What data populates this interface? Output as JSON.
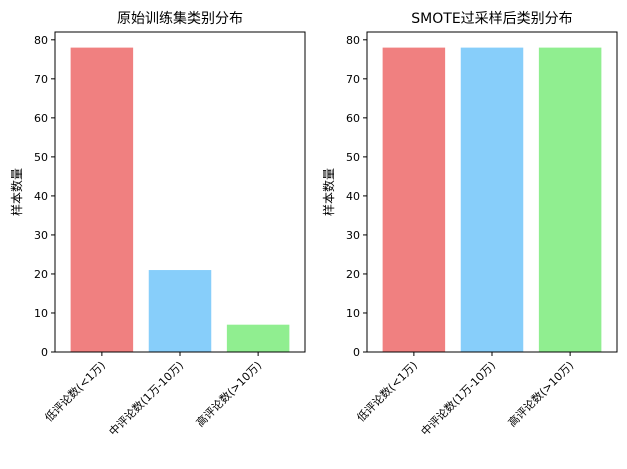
{
  "chart_data": [
    {
      "type": "bar",
      "title": "原始训练集类别分布",
      "xlabel": "",
      "ylabel": "样本数量",
      "categories": [
        "低评论数(<1万)",
        "中评论数(1万-10万)",
        "高评论数(>10万)"
      ],
      "values": [
        78,
        21,
        7
      ],
      "colors": [
        "#f08080",
        "#87cefa",
        "#90ee90"
      ],
      "ylim": [
        0,
        82
      ],
      "yticks": [
        0,
        10,
        20,
        30,
        40,
        50,
        60,
        70,
        80
      ],
      "grid": false,
      "legend": "none"
    },
    {
      "type": "bar",
      "title": "SMOTE过采样后类别分布",
      "xlabel": "",
      "ylabel": "样本数量",
      "categories": [
        "低评论数(<1万)",
        "中评论数(1万-10万)",
        "高评论数(>10万)"
      ],
      "values": [
        78,
        78,
        78
      ],
      "colors": [
        "#f08080",
        "#87cefa",
        "#90ee90"
      ],
      "ylim": [
        0,
        82
      ],
      "yticks": [
        0,
        10,
        20,
        30,
        40,
        50,
        60,
        70,
        80
      ],
      "grid": false,
      "legend": "none"
    }
  ]
}
